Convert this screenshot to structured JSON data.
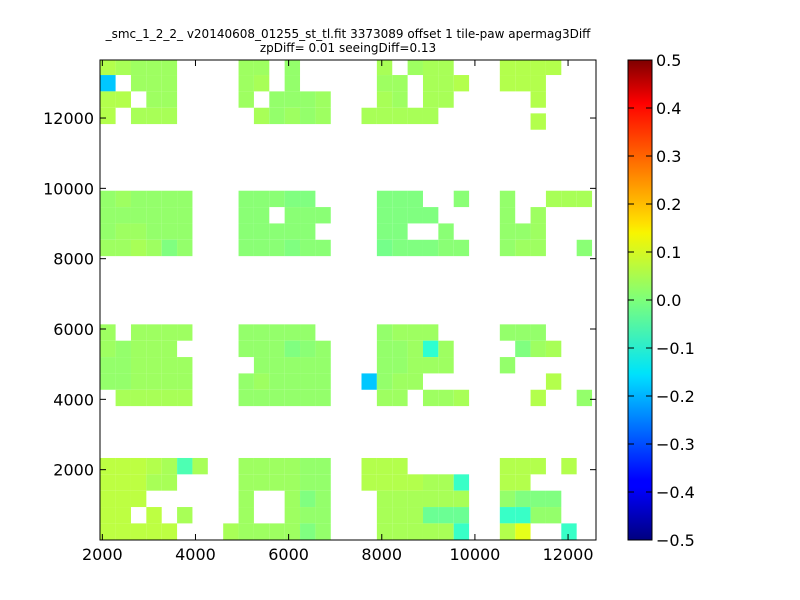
{
  "chart_data": {
    "type": "heatmap",
    "title": "_smc_1_2_2_ v20140608_01255_st_tl.fit 3373089 offset 1 tile-paw apermag3Diff",
    "subtitle": "zpDiff= 0.01 seeingDiff=0.13",
    "xlabel": "",
    "ylabel": "",
    "xlim": [
      1950,
      12600
    ],
    "ylim": [
      0,
      13650
    ],
    "x_ticks": [
      2000,
      4000,
      6000,
      8000,
      10000,
      12000
    ],
    "y_ticks": [
      2000,
      4000,
      6000,
      8000,
      10000,
      12000
    ],
    "cell_size": [
      330,
      465
    ],
    "colorbar": {
      "range": [
        -0.5,
        0.5
      ],
      "ticks": [
        "0.5",
        "0.4",
        "0.3",
        "0.2",
        "0.1",
        "0.0",
        "−0.1",
        "−0.2",
        "−0.3",
        "−0.4",
        "−0.5"
      ],
      "colormap": "jet"
    },
    "cells": [
      [
        2120,
        12990,
        -0.18
      ],
      [
        2120,
        13455,
        0.05
      ],
      [
        2120,
        12525,
        0.05
      ],
      [
        2120,
        12060,
        0.05
      ],
      [
        2450,
        13455,
        0.04
      ],
      [
        2450,
        12525,
        0.05
      ],
      [
        2780,
        13455,
        0.03
      ],
      [
        2780,
        12990,
        0.03
      ],
      [
        2780,
        12060,
        0.04
      ],
      [
        3110,
        13455,
        0.03
      ],
      [
        3110,
        12990,
        0.03
      ],
      [
        3110,
        12525,
        0.03
      ],
      [
        3110,
        12060,
        0.04
      ],
      [
        3440,
        13455,
        0.03
      ],
      [
        3440,
        12990,
        0.03
      ],
      [
        3440,
        12525,
        0.03
      ],
      [
        3440,
        12060,
        0.04
      ],
      [
        5090,
        13455,
        0.03
      ],
      [
        5090,
        12990,
        0.03
      ],
      [
        5090,
        12525,
        0.03
      ],
      [
        5420,
        13455,
        0.03
      ],
      [
        5420,
        12990,
        0.04
      ],
      [
        5420,
        12060,
        0.04
      ],
      [
        5750,
        12525,
        0.02
      ],
      [
        5750,
        12060,
        0.02
      ],
      [
        6080,
        13455,
        0.02
      ],
      [
        6080,
        12990,
        0.02
      ],
      [
        6080,
        12525,
        0.02
      ],
      [
        6080,
        12060,
        0.03
      ],
      [
        6410,
        12525,
        0.02
      ],
      [
        6410,
        12060,
        0.02
      ],
      [
        6740,
        12525,
        0.03
      ],
      [
        6740,
        12060,
        0.03
      ],
      [
        7730,
        12060,
        0.04
      ],
      [
        8060,
        13455,
        0.04
      ],
      [
        8060,
        12990,
        0.03
      ],
      [
        8060,
        12525,
        0.04
      ],
      [
        8060,
        12060,
        0.04
      ],
      [
        8390,
        12990,
        0.03
      ],
      [
        8390,
        12525,
        0.03
      ],
      [
        8390,
        12060,
        0.04
      ],
      [
        8720,
        13455,
        0.03
      ],
      [
        8720,
        12060,
        0.04
      ],
      [
        9050,
        13455,
        0.04
      ],
      [
        9050,
        12990,
        0.04
      ],
      [
        9050,
        12525,
        0.04
      ],
      [
        9050,
        12060,
        0.04
      ],
      [
        9380,
        13455,
        0.04
      ],
      [
        9380,
        12990,
        0.04
      ],
      [
        9380,
        12525,
        0.04
      ],
      [
        9710,
        12990,
        0.05
      ],
      [
        10700,
        13455,
        0.05
      ],
      [
        10700,
        12990,
        0.05
      ],
      [
        11030,
        13455,
        0.05
      ],
      [
        11030,
        12990,
        0.05
      ],
      [
        11360,
        13455,
        0.05
      ],
      [
        11360,
        12990,
        0.05
      ],
      [
        11360,
        12525,
        0.05
      ],
      [
        11690,
        13455,
        0.05
      ],
      [
        11360,
        11900,
        0.05
      ],
      [
        2120,
        9700,
        0.02
      ],
      [
        2120,
        9235,
        0.02
      ],
      [
        2120,
        8770,
        0.02
      ],
      [
        2120,
        8305,
        0.03
      ],
      [
        2450,
        9700,
        0.03
      ],
      [
        2450,
        9235,
        0.02
      ],
      [
        2450,
        8770,
        0.03
      ],
      [
        2450,
        8305,
        0.03
      ],
      [
        2780,
        9700,
        0.02
      ],
      [
        2780,
        9235,
        0.02
      ],
      [
        2780,
        8770,
        0.03
      ],
      [
        2780,
        8305,
        0.04
      ],
      [
        3110,
        9700,
        0.02
      ],
      [
        3110,
        9235,
        0.02
      ],
      [
        3110,
        8770,
        0.02
      ],
      [
        3110,
        8305,
        0.03
      ],
      [
        3440,
        9700,
        0.02
      ],
      [
        3440,
        9235,
        0.02
      ],
      [
        3440,
        8770,
        0.02
      ],
      [
        3440,
        8305,
        0.0
      ],
      [
        3770,
        9700,
        0.02
      ],
      [
        3770,
        9235,
        0.02
      ],
      [
        3770,
        8770,
        0.02
      ],
      [
        3770,
        8305,
        0.02
      ],
      [
        5090,
        9700,
        0.01
      ],
      [
        5090,
        9235,
        0.01
      ],
      [
        5090,
        8770,
        0.01
      ],
      [
        5090,
        8305,
        0.01
      ],
      [
        5420,
        9700,
        0.01
      ],
      [
        5420,
        9235,
        0.01
      ],
      [
        5420,
        8770,
        0.01
      ],
      [
        5420,
        8305,
        0.01
      ],
      [
        5750,
        9700,
        0.01
      ],
      [
        5750,
        8770,
        0.01
      ],
      [
        5750,
        8305,
        0.01
      ],
      [
        6080,
        9700,
        0.0
      ],
      [
        6080,
        9235,
        0.01
      ],
      [
        6080,
        8770,
        0.01
      ],
      [
        6080,
        8305,
        0.0
      ],
      [
        6410,
        9700,
        0.0
      ],
      [
        6410,
        9235,
        0.01
      ],
      [
        6410,
        8770,
        0.01
      ],
      [
        6410,
        8305,
        0.01
      ],
      [
        6740,
        9235,
        0.01
      ],
      [
        6740,
        8305,
        0.01
      ],
      [
        8060,
        9700,
        0.0
      ],
      [
        8060,
        9235,
        0.0
      ],
      [
        8060,
        8770,
        0.0
      ],
      [
        8060,
        8305,
        -0.01
      ],
      [
        8390,
        9700,
        0.0
      ],
      [
        8390,
        9235,
        0.0
      ],
      [
        8390,
        8770,
        0.0
      ],
      [
        8390,
        8305,
        0.0
      ],
      [
        8720,
        9700,
        0.0
      ],
      [
        8720,
        9235,
        0.0
      ],
      [
        8720,
        8305,
        0.0
      ],
      [
        9050,
        9235,
        0.0
      ],
      [
        9050,
        8305,
        0.0
      ],
      [
        9380,
        8770,
        0.01
      ],
      [
        9380,
        8305,
        0.01
      ],
      [
        9710,
        9700,
        0.01
      ],
      [
        9710,
        8305,
        0.01
      ],
      [
        10700,
        9700,
        0.02
      ],
      [
        10700,
        9235,
        0.02
      ],
      [
        10700,
        8770,
        0.02
      ],
      [
        10700,
        8305,
        0.02
      ],
      [
        11030,
        8770,
        0.02
      ],
      [
        11030,
        8305,
        0.03
      ],
      [
        11360,
        9235,
        0.03
      ],
      [
        11360,
        8770,
        0.03
      ],
      [
        11360,
        8305,
        0.03
      ],
      [
        11690,
        9700,
        0.04
      ],
      [
        12020,
        9700,
        0.04
      ],
      [
        12350,
        9700,
        0.04
      ],
      [
        12350,
        8305,
        0.01
      ],
      [
        2120,
        5900,
        0.03
      ],
      [
        2120,
        5435,
        0.03
      ],
      [
        2120,
        4970,
        0.02
      ],
      [
        2120,
        4505,
        0.02
      ],
      [
        2450,
        5435,
        0.02
      ],
      [
        2450,
        4970,
        0.02
      ],
      [
        2450,
        4505,
        0.02
      ],
      [
        2450,
        4040,
        0.04
      ],
      [
        2780,
        5900,
        0.03
      ],
      [
        2780,
        5435,
        0.03
      ],
      [
        2780,
        4970,
        0.03
      ],
      [
        2780,
        4505,
        0.03
      ],
      [
        2780,
        4040,
        0.04
      ],
      [
        3110,
        5900,
        0.03
      ],
      [
        3110,
        5435,
        0.03
      ],
      [
        3110,
        4970,
        0.03
      ],
      [
        3110,
        4505,
        0.03
      ],
      [
        3110,
        4040,
        0.04
      ],
      [
        3440,
        5900,
        0.03
      ],
      [
        3440,
        5435,
        0.03
      ],
      [
        3440,
        4970,
        0.03
      ],
      [
        3440,
        4505,
        0.03
      ],
      [
        3440,
        4040,
        0.04
      ],
      [
        3770,
        5900,
        0.03
      ],
      [
        3770,
        4970,
        0.03
      ],
      [
        3770,
        4505,
        0.03
      ],
      [
        3770,
        4040,
        0.04
      ],
      [
        5090,
        5900,
        0.02
      ],
      [
        5090,
        5435,
        0.02
      ],
      [
        5090,
        4505,
        0.02
      ],
      [
        5090,
        4040,
        0.02
      ],
      [
        5420,
        5900,
        0.02
      ],
      [
        5420,
        5435,
        0.02
      ],
      [
        5420,
        4970,
        0.02
      ],
      [
        5420,
        4505,
        0.03
      ],
      [
        5420,
        4040,
        0.02
      ],
      [
        5750,
        5900,
        0.02
      ],
      [
        5750,
        5435,
        0.02
      ],
      [
        5750,
        4970,
        0.02
      ],
      [
        5750,
        4505,
        0.02
      ],
      [
        5750,
        4040,
        0.02
      ],
      [
        6080,
        5900,
        0.02
      ],
      [
        6080,
        5435,
        0.0
      ],
      [
        6080,
        4970,
        0.02
      ],
      [
        6080,
        4505,
        0.02
      ],
      [
        6080,
        4040,
        0.02
      ],
      [
        6410,
        5900,
        0.02
      ],
      [
        6410,
        5435,
        0.01
      ],
      [
        6410,
        4970,
        0.02
      ],
      [
        6410,
        4505,
        0.02
      ],
      [
        6410,
        4040,
        0.02
      ],
      [
        6740,
        5435,
        0.02
      ],
      [
        6740,
        4970,
        0.02
      ],
      [
        6740,
        4505,
        0.02
      ],
      [
        6740,
        4040,
        0.02
      ],
      [
        7730,
        4505,
        -0.18
      ],
      [
        8060,
        5900,
        0.02
      ],
      [
        8060,
        5435,
        0.02
      ],
      [
        8060,
        4970,
        0.02
      ],
      [
        8060,
        4505,
        0.02
      ],
      [
        8060,
        4040,
        0.03
      ],
      [
        8390,
        5900,
        0.03
      ],
      [
        8390,
        5435,
        0.02
      ],
      [
        8390,
        4970,
        0.02
      ],
      [
        8390,
        4505,
        0.03
      ],
      [
        8390,
        4040,
        0.03
      ],
      [
        8720,
        5900,
        0.03
      ],
      [
        8720,
        5435,
        0.03
      ],
      [
        8720,
        4970,
        0.03
      ],
      [
        8720,
        4505,
        0.03
      ],
      [
        9050,
        5900,
        0.03
      ],
      [
        9050,
        5435,
        -0.08
      ],
      [
        9050,
        4970,
        0.03
      ],
      [
        9050,
        4040,
        0.03
      ],
      [
        9380,
        5435,
        0.03
      ],
      [
        9380,
        4970,
        0.03
      ],
      [
        9380,
        4040,
        0.03
      ],
      [
        9710,
        4040,
        0.04
      ],
      [
        10700,
        5900,
        0.02
      ],
      [
        10700,
        4970,
        0.02
      ],
      [
        11030,
        5900,
        0.02
      ],
      [
        11030,
        5435,
        0.0
      ],
      [
        11360,
        5435,
        0.03
      ],
      [
        11360,
        5900,
        0.02
      ],
      [
        11690,
        5435,
        0.04
      ],
      [
        11690,
        4505,
        0.05
      ],
      [
        11360,
        4040,
        0.05
      ],
      [
        12350,
        4040,
        0.02
      ],
      [
        2120,
        2100,
        0.06
      ],
      [
        2120,
        1635,
        0.06
      ],
      [
        2120,
        1170,
        0.06
      ],
      [
        2120,
        705,
        0.06
      ],
      [
        2120,
        240,
        0.06
      ],
      [
        2450,
        2100,
        0.06
      ],
      [
        2450,
        1635,
        0.06
      ],
      [
        2450,
        1170,
        0.06
      ],
      [
        2450,
        705,
        0.06
      ],
      [
        2450,
        240,
        0.06
      ],
      [
        2780,
        2100,
        0.06
      ],
      [
        2780,
        1635,
        0.06
      ],
      [
        2780,
        1170,
        0.06
      ],
      [
        2780,
        240,
        0.06
      ],
      [
        3110,
        2100,
        0.05
      ],
      [
        3110,
        1635,
        0.04
      ],
      [
        3110,
        705,
        0.06
      ],
      [
        3110,
        240,
        0.06
      ],
      [
        3440,
        2100,
        0.04
      ],
      [
        3440,
        1635,
        0.04
      ],
      [
        3440,
        240,
        0.06
      ],
      [
        3770,
        2100,
        -0.05
      ],
      [
        3770,
        705,
        0.04
      ],
      [
        4100,
        2100,
        0.04
      ],
      [
        4760,
        240,
        0.04
      ],
      [
        5090,
        2100,
        0.03
      ],
      [
        5090,
        1635,
        0.03
      ],
      [
        5090,
        1170,
        0.03
      ],
      [
        5090,
        705,
        0.03
      ],
      [
        5090,
        240,
        0.03
      ],
      [
        5420,
        2100,
        0.03
      ],
      [
        5420,
        1635,
        0.03
      ],
      [
        5420,
        240,
        0.03
      ],
      [
        5750,
        2100,
        0.03
      ],
      [
        5750,
        1635,
        0.03
      ],
      [
        5750,
        240,
        0.03
      ],
      [
        6080,
        2100,
        0.03
      ],
      [
        6080,
        1635,
        0.03
      ],
      [
        6080,
        1170,
        0.03
      ],
      [
        6080,
        705,
        0.03
      ],
      [
        6080,
        240,
        0.03
      ],
      [
        6410,
        2100,
        0.02
      ],
      [
        6410,
        1635,
        0.02
      ],
      [
        6410,
        1170,
        0.0
      ],
      [
        6410,
        705,
        0.02
      ],
      [
        6410,
        240,
        0.0
      ],
      [
        6740,
        2100,
        0.02
      ],
      [
        6740,
        1635,
        0.02
      ],
      [
        6740,
        1170,
        0.02
      ],
      [
        6740,
        705,
        0.02
      ],
      [
        6740,
        240,
        0.02
      ],
      [
        7730,
        2100,
        0.05
      ],
      [
        7730,
        1635,
        0.05
      ],
      [
        8060,
        2100,
        0.05
      ],
      [
        8060,
        1635,
        0.05
      ],
      [
        8060,
        1170,
        0.04
      ],
      [
        8060,
        705,
        0.04
      ],
      [
        8060,
        240,
        0.04
      ],
      [
        8390,
        2100,
        0.05
      ],
      [
        8390,
        1635,
        0.05
      ],
      [
        8390,
        1170,
        0.04
      ],
      [
        8390,
        705,
        0.04
      ],
      [
        8390,
        240,
        0.04
      ],
      [
        8720,
        1635,
        0.05
      ],
      [
        8720,
        1170,
        0.04
      ],
      [
        8720,
        705,
        0.04
      ],
      [
        8720,
        240,
        0.04
      ],
      [
        9050,
        1635,
        0.04
      ],
      [
        9050,
        1170,
        0.04
      ],
      [
        9050,
        705,
        -0.02
      ],
      [
        9050,
        240,
        0.04
      ],
      [
        9380,
        1635,
        0.04
      ],
      [
        9380,
        1170,
        0.04
      ],
      [
        9380,
        705,
        -0.02
      ],
      [
        9380,
        240,
        0.04
      ],
      [
        9710,
        1635,
        -0.07
      ],
      [
        9710,
        1170,
        0.04
      ],
      [
        9710,
        705,
        -0.02
      ],
      [
        9710,
        240,
        -0.07
      ],
      [
        10700,
        2100,
        0.05
      ],
      [
        10700,
        1635,
        0.05
      ],
      [
        10700,
        1170,
        0.02
      ],
      [
        10700,
        705,
        -0.07
      ],
      [
        10700,
        240,
        0.05
      ],
      [
        11030,
        2100,
        0.05
      ],
      [
        11030,
        1635,
        0.05
      ],
      [
        11030,
        1170,
        0.0
      ],
      [
        11030,
        705,
        -0.07
      ],
      [
        11030,
        240,
        0.1
      ],
      [
        11360,
        2100,
        0.05
      ],
      [
        11360,
        1170,
        0.0
      ],
      [
        11360,
        705,
        0.02
      ],
      [
        11690,
        1170,
        0.0
      ],
      [
        11690,
        705,
        0.02
      ],
      [
        12020,
        2100,
        0.05
      ],
      [
        12020,
        240,
        -0.07
      ]
    ]
  }
}
